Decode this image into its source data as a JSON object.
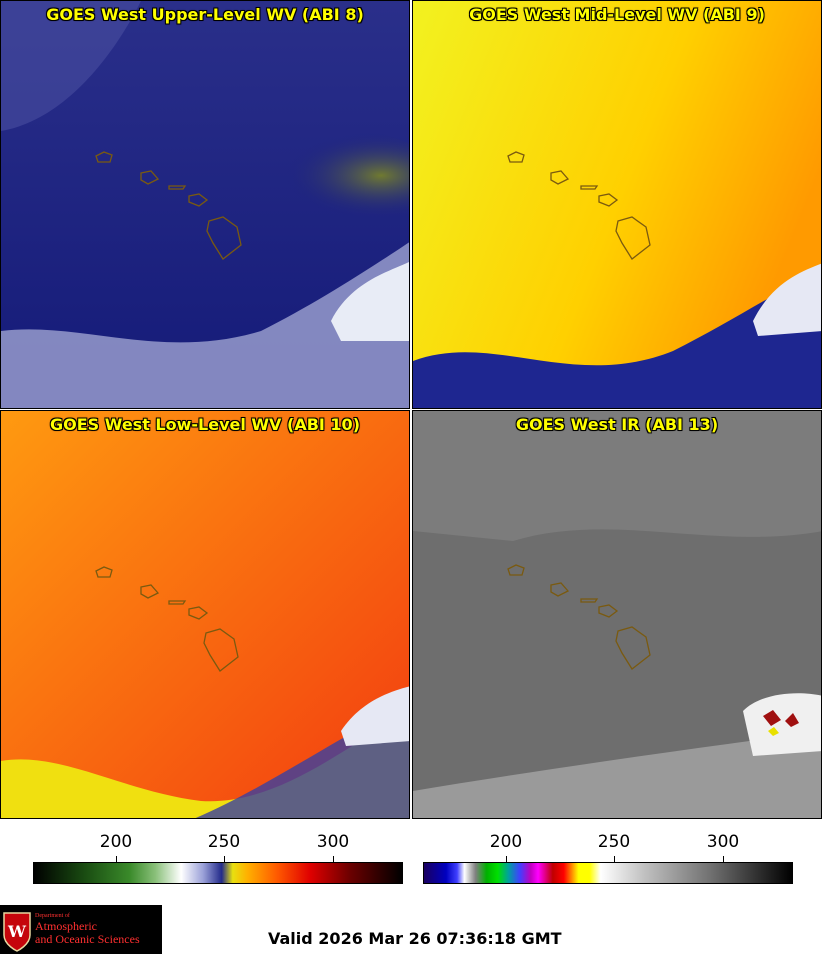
{
  "panels": [
    {
      "title": "GOES West Upper-Level WV (ABI 8)"
    },
    {
      "title": "GOES West Mid-Level WV (ABI 9)"
    },
    {
      "title": "GOES West Low-Level WV (ABI 10)"
    },
    {
      "title": "GOES West IR (ABI 13)"
    }
  ],
  "colorbars": {
    "left_ticks": [
      "200",
      "250",
      "300"
    ],
    "right_ticks": [
      "200",
      "250",
      "300"
    ]
  },
  "logo": {
    "line1": "Department of",
    "line2": "Atmospheric",
    "line3": "and Oceanic Sciences"
  },
  "valid": "Valid 2026 Mar 26 07:36:18 GMT",
  "colors": {
    "title_text": "#ffff00",
    "island_outline": "#7a5a10"
  }
}
